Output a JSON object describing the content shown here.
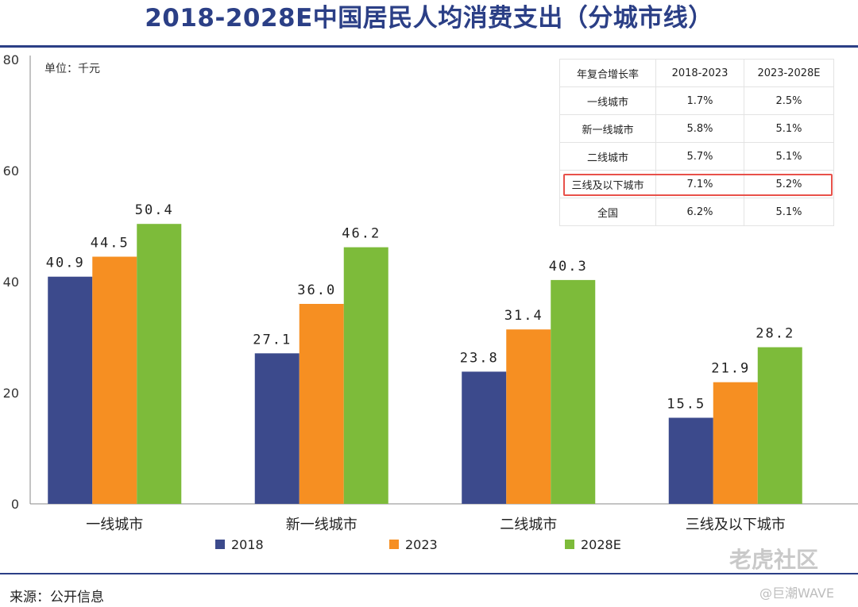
{
  "title": "2018-2028E中国居民人均消费支出（分城市线）",
  "source": "来源：公开信息",
  "watermark_logo": "老虎社区",
  "watermark_handle": "@巨潮WAVE",
  "unit_label": "单位：千元",
  "table": {
    "headers": [
      "年复合增长率",
      "2018-2023",
      "2023-2028E"
    ],
    "rows": [
      [
        "一线城市",
        "1.7%",
        "2.5%"
      ],
      [
        "新一线城市",
        "5.8%",
        "5.1%"
      ],
      [
        "二线城市",
        "5.7%",
        "5.1%"
      ],
      [
        "三线及以下城市",
        "7.1%",
        "5.2%"
      ],
      [
        "全国",
        "6.2%",
        "5.1%"
      ]
    ],
    "highlight_row": 3,
    "highlight_color": "#e8514a"
  },
  "chart_data": {
    "type": "bar",
    "categories": [
      "一线城市",
      "新一线城市",
      "二线城市",
      "三线及以下城市"
    ],
    "series": [
      {
        "name": "2018",
        "color": "#3c4a8c",
        "values": [
          40.9,
          27.1,
          23.8,
          15.5
        ]
      },
      {
        "name": "2023",
        "color": "#f68f22",
        "values": [
          44.5,
          36.0,
          31.4,
          21.9
        ]
      },
      {
        "name": "2028E",
        "color": "#7dbb3a",
        "values": [
          50.4,
          46.2,
          40.3,
          28.2
        ]
      }
    ],
    "yticks": [
      0,
      20,
      40,
      60,
      80
    ],
    "ylim": [
      0,
      80
    ],
    "grid": false,
    "legend": "bottom-center"
  }
}
